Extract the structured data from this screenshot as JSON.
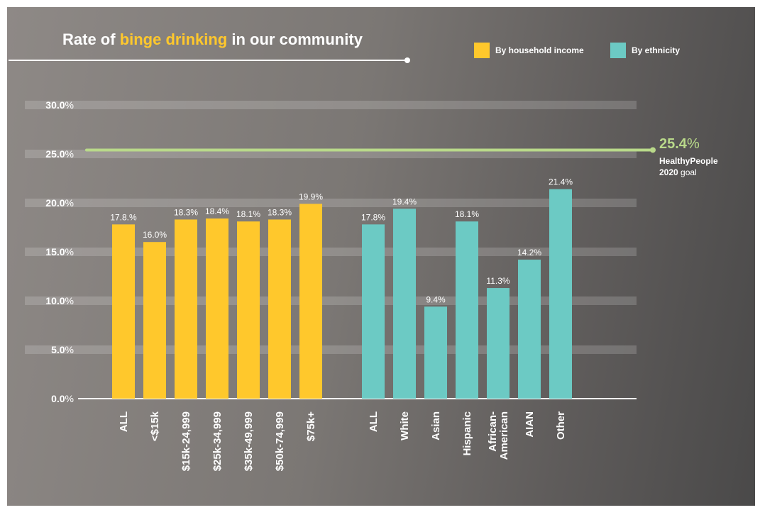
{
  "title": {
    "prefix": "Rate of ",
    "highlight": "binge drinking",
    "suffix": " in our community"
  },
  "legend": [
    {
      "label": "By household income",
      "color": "#ffc82c"
    },
    {
      "label": "By ethnicity",
      "color": "#6ccac4"
    }
  ],
  "goal": {
    "value_text": "25.4",
    "unit": "%",
    "line1": "HealthyPeople",
    "line2_bold": "2020",
    "line2_rest": " goal",
    "color": "#b9d98a"
  },
  "chart_data": {
    "type": "bar",
    "ylim": [
      0,
      30
    ],
    "yticks": [
      {
        "value": 0,
        "num": "0.0",
        "unit": "%"
      },
      {
        "value": 5,
        "num": "5.0",
        "unit": "%"
      },
      {
        "value": 10,
        "num": "10.0",
        "unit": "%"
      },
      {
        "value": 15,
        "num": "15.0",
        "unit": "%"
      },
      {
        "value": 20,
        "num": "20.0",
        "unit": "%"
      },
      {
        "value": 25,
        "num": "25.0",
        "unit": "%"
      },
      {
        "value": 30,
        "num": "30.0",
        "unit": "%"
      }
    ],
    "grid": true,
    "reference_line": {
      "value": 25.4
    },
    "series": [
      {
        "name": "By household income",
        "color": "#ffc82c",
        "categories": [
          [
            "ALL"
          ],
          [
            "<$15k"
          ],
          [
            "$15k-24,999"
          ],
          [
            "$25k-34,999"
          ],
          [
            "$35k-49,999"
          ],
          [
            "$50k-74,999"
          ],
          [
            "$75k+"
          ]
        ],
        "values": [
          17.8,
          16.0,
          18.3,
          18.4,
          18.1,
          18.3,
          19.9
        ],
        "labels": [
          "17.8.%",
          "16.0%",
          "18.3%",
          "18.4%",
          "18.1%",
          "18.3%",
          "19.9%"
        ]
      },
      {
        "name": "By ethnicity",
        "color": "#6ccac4",
        "categories": [
          [
            "ALL"
          ],
          [
            "White"
          ],
          [
            "Asian"
          ],
          [
            "Hispanic"
          ],
          [
            "African-",
            "American"
          ],
          [
            "AIAN"
          ],
          [
            "Other"
          ]
        ],
        "values": [
          17.8,
          19.4,
          9.4,
          18.1,
          11.3,
          14.2,
          21.4
        ],
        "labels": [
          "17.8%",
          "19.4%",
          "9.4%",
          "18.1%",
          "11.3%",
          "14.2%",
          "21.4%"
        ]
      }
    ]
  }
}
